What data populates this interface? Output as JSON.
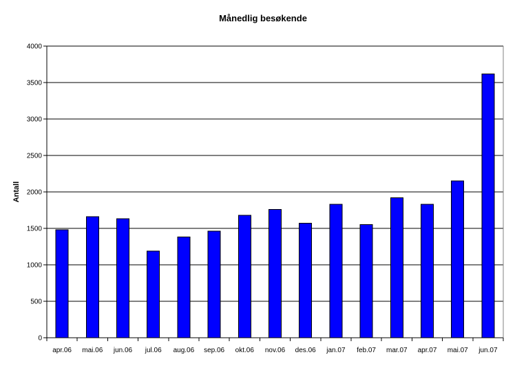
{
  "chart_data": {
    "type": "bar",
    "title": "Månedlig besøkende",
    "xlabel": "",
    "ylabel": "Antall",
    "categories": [
      "apr.06",
      "mai.06",
      "jun.06",
      "jul.06",
      "aug.06",
      "sep.06",
      "okt.06",
      "nov.06",
      "des.06",
      "jan.07",
      "feb.07",
      "mar.07",
      "apr.07",
      "mai.07",
      "jun.07"
    ],
    "values": [
      1480,
      1660,
      1630,
      1190,
      1380,
      1460,
      1680,
      1760,
      1570,
      1830,
      1550,
      1920,
      1830,
      2150,
      3620
    ],
    "ylim": [
      0,
      4000
    ],
    "yticks": [
      "0",
      "500",
      "1000",
      "1500",
      "2000",
      "2500",
      "3000",
      "3500",
      "4000"
    ],
    "grid": true,
    "legend": "none",
    "colors": {
      "bar": "#0000ff",
      "bar_stroke": "#000000",
      "grid": "#000000",
      "background": "#ffffff"
    }
  }
}
